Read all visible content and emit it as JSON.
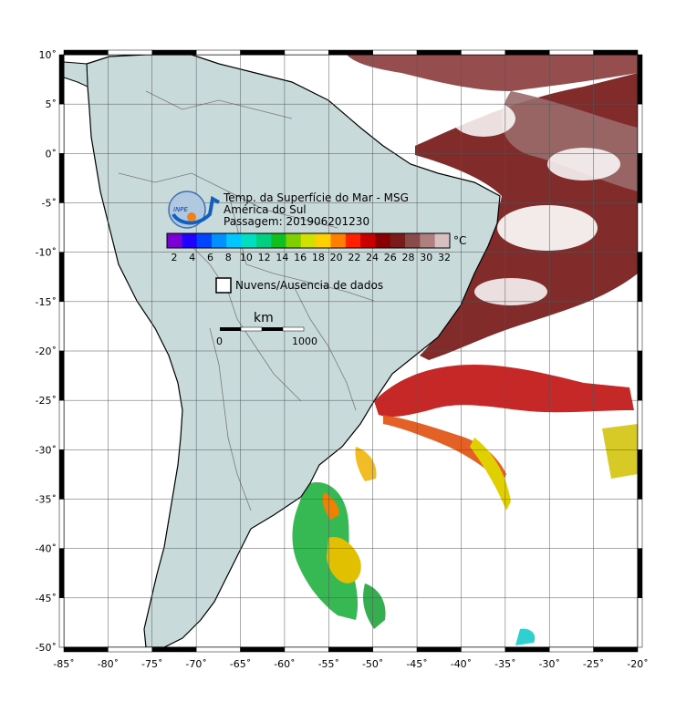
{
  "map": {
    "lon_min": -85,
    "lon_max": -20,
    "lat_min": -50,
    "lat_max": 10,
    "lon_ticks": [
      -85,
      -80,
      -75,
      -70,
      -65,
      -60,
      -55,
      -50,
      -45,
      -40,
      -35,
      -30,
      -25,
      -20
    ],
    "lat_ticks": [
      10,
      5,
      0,
      -5,
      -10,
      -15,
      -20,
      -25,
      -30,
      -35,
      -40,
      -45,
      -50
    ],
    "lon_tick_labels": [
      "-85˚",
      "-80˚",
      "-75˚",
      "-70˚",
      "-65˚",
      "-60˚",
      "-55˚",
      "-50˚",
      "-45˚",
      "-40˚",
      "-35˚",
      "-30˚",
      "-25˚",
      "-20˚"
    ],
    "lat_tick_labels": [
      "10˚",
      "5˚",
      "0˚",
      "-5˚",
      "-10˚",
      "-15˚",
      "-20˚",
      "-25˚",
      "-30˚",
      "-35˚",
      "-40˚",
      "-45˚",
      "-50˚"
    ],
    "land_color": "#c9dadb",
    "ocean_color": "#ffffff"
  },
  "legend": {
    "logo_text": "INPE",
    "title": "Temp. da Superfície do Mar - MSG",
    "region": "América do Sul",
    "pass": "Passagem: 201906201230",
    "unit": "°C",
    "colorbar_ticks": [
      "2",
      "4",
      "6",
      "8",
      "10",
      "12",
      "14",
      "16",
      "18",
      "20",
      "22",
      "24",
      "26",
      "28",
      "30",
      "32"
    ],
    "colorbar_colors": [
      "#7a00d6",
      "#2000ff",
      "#0044ff",
      "#0090ff",
      "#00c8ff",
      "#00e0c0",
      "#00d080",
      "#10c020",
      "#80d000",
      "#d0e000",
      "#ffd000",
      "#ff8000",
      "#ff2000",
      "#c80000",
      "#880000",
      "#7a1a1a",
      "#8a4a4a",
      "#b08080",
      "#d8c0c0"
    ],
    "cloud_box_label": "Nuvens/Ausencia de dados",
    "scale_unit": "km",
    "scale_labels": [
      "0",
      "1000"
    ]
  }
}
